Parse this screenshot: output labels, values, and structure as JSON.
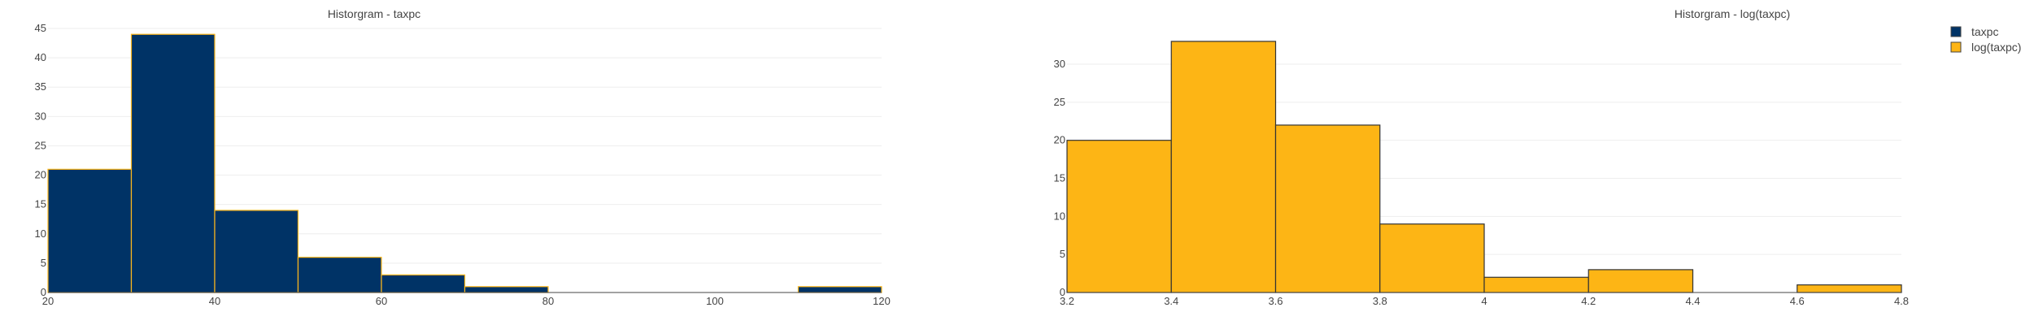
{
  "chart_data": [
    {
      "type": "bar",
      "subtype": "histogram",
      "title": "Historgram - taxpc",
      "series_name": "taxpc",
      "color": "#003366",
      "edge_color": "#FFB81C",
      "bins": [
        {
          "x0": 20,
          "x1": 30,
          "count": 21
        },
        {
          "x0": 30,
          "x1": 40,
          "count": 44
        },
        {
          "x0": 40,
          "x1": 50,
          "count": 14
        },
        {
          "x0": 50,
          "x1": 60,
          "count": 6
        },
        {
          "x0": 60,
          "x1": 70,
          "count": 3
        },
        {
          "x0": 70,
          "x1": 80,
          "count": 1
        },
        {
          "x0": 110,
          "x1": 120,
          "count": 1
        }
      ],
      "xlim": [
        20,
        120
      ],
      "ylim": [
        0,
        45
      ],
      "xticks": [
        20,
        40,
        60,
        80,
        100,
        120
      ],
      "xtick_labels": [
        "20",
        "40",
        "60",
        "80",
        "100",
        "120"
      ],
      "yticks": [
        0,
        5,
        10,
        15,
        20,
        25,
        30,
        35,
        40,
        45
      ],
      "ytick_labels": [
        "0",
        "5",
        "10",
        "15",
        "20",
        "25",
        "30",
        "35",
        "40",
        "45"
      ],
      "grid": true
    },
    {
      "type": "bar",
      "subtype": "histogram",
      "title": "Historgram - log(taxpc)",
      "series_name": "log(taxpc)",
      "color": "#FDB515",
      "edge_color": "#333333",
      "bins": [
        {
          "x0": 3.2,
          "x1": 3.4,
          "count": 20
        },
        {
          "x0": 3.4,
          "x1": 3.6,
          "count": 33
        },
        {
          "x0": 3.6,
          "x1": 3.8,
          "count": 22
        },
        {
          "x0": 3.8,
          "x1": 4.0,
          "count": 9
        },
        {
          "x0": 4.0,
          "x1": 4.2,
          "count": 2
        },
        {
          "x0": 4.2,
          "x1": 4.4,
          "count": 3
        },
        {
          "x0": 4.6,
          "x1": 4.8,
          "count": 1
        }
      ],
      "xlim": [
        3.2,
        4.8
      ],
      "ylim": [
        0,
        34.7
      ],
      "xticks": [
        3.2,
        3.4,
        3.6,
        3.8,
        4.0,
        4.2,
        4.4,
        4.6,
        4.8
      ],
      "xtick_labels": [
        "3.2",
        "3.4",
        "3.6",
        "3.8",
        "4",
        "4.2",
        "4.4",
        "4.6",
        "4.8"
      ],
      "yticks": [
        0,
        5,
        10,
        15,
        20,
        25,
        30
      ],
      "ytick_labels": [
        "0",
        "5",
        "10",
        "15",
        "20",
        "25",
        "30"
      ],
      "grid": true
    }
  ],
  "legend": {
    "placement": "top-right",
    "items": [
      {
        "label": "taxpc",
        "color": "#003366"
      },
      {
        "label": "log(taxpc)",
        "color": "#FDB515"
      }
    ]
  }
}
